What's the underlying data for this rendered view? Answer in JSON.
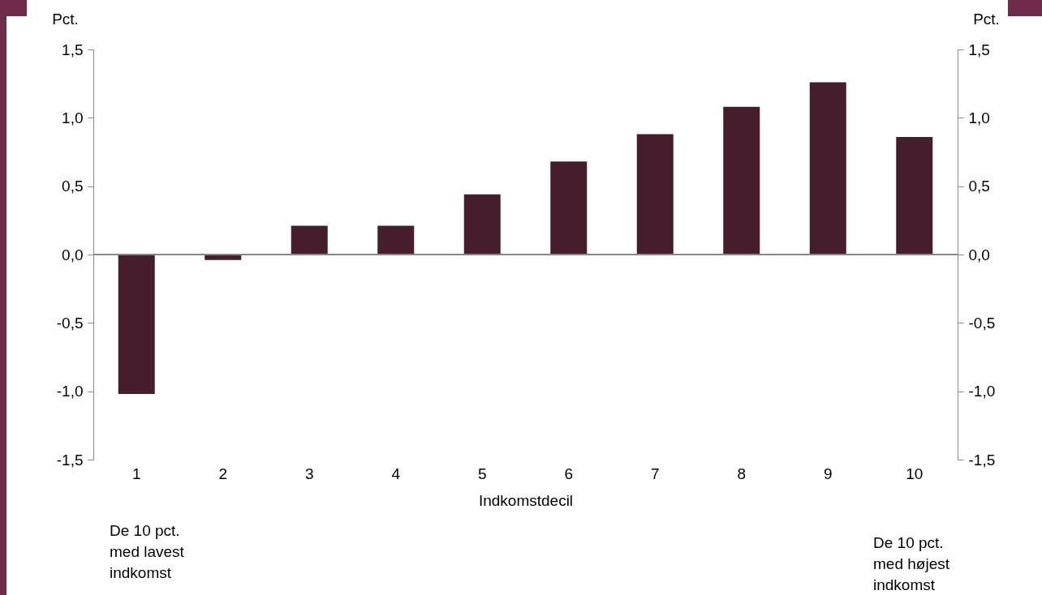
{
  "chart_data": {
    "type": "bar",
    "xlabel": "Indkomstdecil",
    "ylabel": "Pct.",
    "y2label": "Pct.",
    "categories": [
      "1",
      "2",
      "3",
      "4",
      "5",
      "6",
      "7",
      "8",
      "9",
      "10"
    ],
    "values": [
      -1.02,
      -0.04,
      0.21,
      0.21,
      0.44,
      0.68,
      0.88,
      1.08,
      1.26,
      0.86
    ],
    "color": "#461d2c",
    "ylim": [
      -1.5,
      1.5
    ],
    "yticks": [
      {
        "value": -1.5,
        "label": "-1,5"
      },
      {
        "value": -1,
        "label": "-1,0"
      },
      {
        "value": -0.5,
        "label": "-0,5"
      },
      {
        "value": 0,
        "label": "0,0"
      },
      {
        "value": 0.5,
        "label": "0,5"
      },
      {
        "value": 1,
        "label": "1,0"
      },
      {
        "value": 1.5,
        "label": "1,5"
      }
    ],
    "y2lim": [
      -1.5,
      1.5
    ],
    "y2ticks": [
      {
        "value": -1.5,
        "label": "-1,5"
      },
      {
        "value": -1,
        "label": "-1,0"
      },
      {
        "value": -0.5,
        "label": "-0,5"
      },
      {
        "value": 0,
        "label": "0,0"
      },
      {
        "value": 0.5,
        "label": "0,5"
      },
      {
        "value": 1,
        "label": "1,0"
      },
      {
        "value": 1.5,
        "label": "1,5"
      }
    ],
    "annotations": [
      "De 10 pct.\nmed lavest\nindkomst",
      "De 10 pct.\nmed højest\nindkomst"
    ]
  }
}
